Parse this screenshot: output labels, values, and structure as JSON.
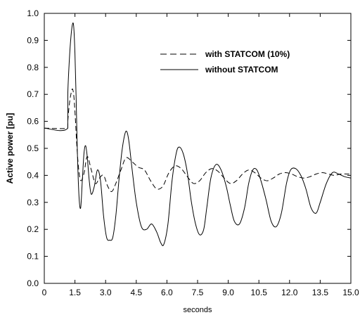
{
  "chart_data": {
    "type": "line",
    "title": "",
    "xlabel": "seconds",
    "ylabel": "Active power [pu]",
    "xlim": [
      0,
      15
    ],
    "ylim": [
      0,
      1
    ],
    "xticks": [
      0,
      1.5,
      3,
      4.5,
      6,
      7.5,
      9,
      10.5,
      12,
      13.5,
      15
    ],
    "xtick_labels": [
      "0",
      "1.5",
      "3.0",
      "4.5",
      "6.0",
      "7.5",
      "9.0",
      "10.5",
      "12.0",
      "13.5",
      "15.0"
    ],
    "yticks": [
      0,
      0.1,
      0.2,
      0.3,
      0.4,
      0.5,
      0.6,
      0.7,
      0.8,
      0.9,
      1.0
    ],
    "ytick_labels": [
      "0.0",
      "0.1",
      "0.2",
      "0.3",
      "0.4",
      "0.5",
      "0.6",
      "0.7",
      "0.8",
      "0.9",
      "1.0"
    ],
    "grid": false,
    "legend": "top-right",
    "series": [
      {
        "name": "with STATCOM (10%)",
        "style": "dashed",
        "color": "#000000",
        "x": [
          0,
          1.15,
          1.15,
          1.22,
          1.3,
          1.38,
          1.45,
          1.52,
          1.6,
          1.7,
          1.8,
          1.95,
          2.1,
          2.3,
          2.5,
          2.7,
          2.9,
          3.1,
          3.3,
          3.5,
          3.75,
          4.0,
          4.3,
          4.6,
          4.9,
          5.2,
          5.5,
          5.8,
          6.1,
          6.4,
          6.7,
          7.0,
          7.3,
          7.6,
          7.9,
          8.2,
          8.5,
          8.8,
          9.1,
          9.4,
          9.7,
          10.0,
          10.3,
          10.6,
          10.9,
          11.2,
          11.5,
          11.8,
          12.1,
          12.4,
          12.7,
          13.0,
          13.3,
          13.6,
          13.9,
          14.2,
          14.5,
          14.8,
          15.0
        ],
        "y": [
          0.575,
          0.575,
          0.6,
          0.66,
          0.7,
          0.72,
          0.69,
          0.61,
          0.5,
          0.41,
          0.38,
          0.41,
          0.47,
          0.42,
          0.37,
          0.39,
          0.4,
          0.36,
          0.34,
          0.37,
          0.42,
          0.465,
          0.45,
          0.43,
          0.42,
          0.38,
          0.35,
          0.36,
          0.41,
          0.435,
          0.425,
          0.395,
          0.37,
          0.38,
          0.41,
          0.425,
          0.415,
          0.39,
          0.37,
          0.38,
          0.405,
          0.42,
          0.41,
          0.39,
          0.38,
          0.39,
          0.405,
          0.41,
          0.405,
          0.395,
          0.39,
          0.395,
          0.405,
          0.41,
          0.405,
          0.4,
          0.405,
          0.405,
          0.405
        ]
      },
      {
        "name": "without STATCOM",
        "style": "solid",
        "color": "#000000",
        "x": [
          0,
          1.15,
          1.15,
          1.22,
          1.3,
          1.38,
          1.44,
          1.5,
          1.56,
          1.62,
          1.7,
          1.78,
          1.86,
          1.94,
          2.02,
          2.1,
          2.2,
          2.3,
          2.45,
          2.6,
          2.75,
          2.9,
          3.05,
          3.2,
          3.35,
          3.5,
          3.65,
          3.8,
          3.95,
          4.05,
          4.15,
          4.3,
          4.5,
          4.75,
          5.0,
          5.25,
          5.5,
          5.7,
          5.85,
          6.05,
          6.25,
          6.45,
          6.6,
          6.8,
          7.0,
          7.2,
          7.4,
          7.6,
          7.8,
          7.95,
          8.15,
          8.4,
          8.65,
          8.9,
          9.1,
          9.3,
          9.55,
          9.8,
          10.0,
          10.2,
          10.4,
          10.6,
          10.85,
          11.1,
          11.35,
          11.6,
          11.85,
          12.05,
          12.3,
          12.55,
          12.8,
          13.05,
          13.3,
          13.5,
          13.8,
          14.1,
          14.4,
          14.7,
          15.0
        ],
        "y": [
          0.575,
          0.575,
          0.7,
          0.82,
          0.91,
          0.96,
          0.95,
          0.85,
          0.68,
          0.48,
          0.32,
          0.28,
          0.38,
          0.48,
          0.51,
          0.47,
          0.38,
          0.33,
          0.36,
          0.42,
          0.38,
          0.25,
          0.17,
          0.16,
          0.17,
          0.25,
          0.38,
          0.49,
          0.555,
          0.56,
          0.52,
          0.42,
          0.3,
          0.21,
          0.2,
          0.22,
          0.19,
          0.15,
          0.145,
          0.22,
          0.38,
          0.48,
          0.505,
          0.48,
          0.41,
          0.3,
          0.22,
          0.18,
          0.2,
          0.28,
          0.39,
          0.44,
          0.42,
          0.36,
          0.29,
          0.23,
          0.22,
          0.28,
          0.37,
          0.42,
          0.42,
          0.38,
          0.31,
          0.23,
          0.21,
          0.26,
          0.37,
          0.42,
          0.425,
          0.4,
          0.35,
          0.28,
          0.26,
          0.3,
          0.37,
          0.41,
          0.405,
          0.395,
          0.39
        ]
      }
    ]
  }
}
